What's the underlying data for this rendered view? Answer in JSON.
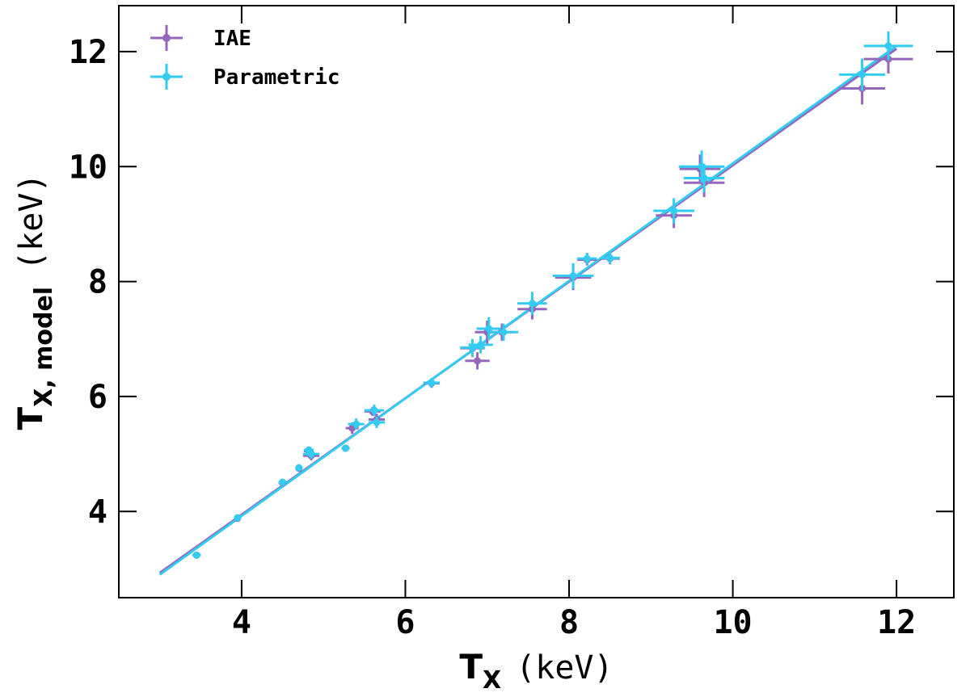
{
  "chart_data": {
    "type": "scatter",
    "title": "",
    "xlabel": {
      "symbol": "T",
      "sub": "X",
      "unit": "(keV)"
    },
    "ylabel": {
      "symbol": "T",
      "sub": "X, model",
      "unit": "(keV)"
    },
    "xlim": [
      2.5,
      12.7
    ],
    "ylim": [
      2.5,
      12.8
    ],
    "xticks": [
      4,
      6,
      8,
      10,
      12
    ],
    "yticks": [
      4,
      6,
      8,
      10,
      12
    ],
    "grid": false,
    "legend_position": "top-left",
    "series": [
      {
        "name": "IAE",
        "color": "#9467bd",
        "fit_line": {
          "x": [
            3.0,
            12.0
          ],
          "y": [
            2.93,
            12.05
          ]
        },
        "points": [
          {
            "x": 3.45,
            "y": 3.24,
            "xerr": 0.05,
            "yerr": 0.03
          },
          {
            "x": 3.95,
            "y": 3.88,
            "xerr": 0.04,
            "yerr": 0.04
          },
          {
            "x": 4.5,
            "y": 4.5,
            "xerr": 0.05,
            "yerr": 0.05
          },
          {
            "x": 4.7,
            "y": 4.75,
            "xerr": 0.04,
            "yerr": 0.05
          },
          {
            "x": 4.82,
            "y": 5.05,
            "xerr": 0.06,
            "yerr": 0.06
          },
          {
            "x": 4.85,
            "y": 4.97,
            "xerr": 0.1,
            "yerr": 0.08
          },
          {
            "x": 5.27,
            "y": 5.1,
            "xerr": 0.05,
            "yerr": 0.04
          },
          {
            "x": 5.35,
            "y": 5.45,
            "xerr": 0.08,
            "yerr": 0.1
          },
          {
            "x": 5.6,
            "y": 5.74,
            "xerr": 0.1,
            "yerr": 0.08
          },
          {
            "x": 5.65,
            "y": 5.6,
            "xerr": 0.1,
            "yerr": 0.1
          },
          {
            "x": 6.32,
            "y": 6.23,
            "xerr": 0.1,
            "yerr": 0.08
          },
          {
            "x": 6.82,
            "y": 6.84,
            "xerr": 0.15,
            "yerr": 0.15
          },
          {
            "x": 6.88,
            "y": 6.62,
            "xerr": 0.15,
            "yerr": 0.15
          },
          {
            "x": 7.0,
            "y": 7.12,
            "xerr": 0.15,
            "yerr": 0.2
          },
          {
            "x": 7.18,
            "y": 7.12,
            "xerr": 0.15,
            "yerr": 0.15
          },
          {
            "x": 7.55,
            "y": 7.52,
            "xerr": 0.18,
            "yerr": 0.18
          },
          {
            "x": 8.05,
            "y": 8.07,
            "xerr": 0.22,
            "yerr": 0.22
          },
          {
            "x": 8.22,
            "y": 8.38,
            "xerr": 0.12,
            "yerr": 0.1
          },
          {
            "x": 8.5,
            "y": 8.4,
            "xerr": 0.12,
            "yerr": 0.1
          },
          {
            "x": 9.28,
            "y": 9.15,
            "xerr": 0.22,
            "yerr": 0.22
          },
          {
            "x": 9.6,
            "y": 9.96,
            "xerr": 0.25,
            "yerr": 0.25
          },
          {
            "x": 9.65,
            "y": 9.72,
            "xerr": 0.25,
            "yerr": 0.25
          },
          {
            "x": 11.58,
            "y": 11.36,
            "xerr": 0.28,
            "yerr": 0.28
          },
          {
            "x": 11.9,
            "y": 11.87,
            "xerr": 0.3,
            "yerr": 0.25
          }
        ]
      },
      {
        "name": "Parametric",
        "color": "#33ccf0",
        "fit_line": {
          "x": [
            3.0,
            12.0
          ],
          "y": [
            2.9,
            12.1
          ]
        },
        "points": [
          {
            "x": 3.45,
            "y": 3.24,
            "xerr": 0.05,
            "yerr": 0.03
          },
          {
            "x": 3.95,
            "y": 3.89,
            "xerr": 0.04,
            "yerr": 0.04
          },
          {
            "x": 4.5,
            "y": 4.51,
            "xerr": 0.05,
            "yerr": 0.05
          },
          {
            "x": 4.7,
            "y": 4.76,
            "xerr": 0.04,
            "yerr": 0.05
          },
          {
            "x": 4.82,
            "y": 5.07,
            "xerr": 0.06,
            "yerr": 0.06
          },
          {
            "x": 4.85,
            "y": 5.0,
            "xerr": 0.1,
            "yerr": 0.08
          },
          {
            "x": 5.27,
            "y": 5.1,
            "xerr": 0.05,
            "yerr": 0.04
          },
          {
            "x": 5.4,
            "y": 5.52,
            "xerr": 0.1,
            "yerr": 0.1
          },
          {
            "x": 5.62,
            "y": 5.76,
            "xerr": 0.12,
            "yerr": 0.1
          },
          {
            "x": 5.65,
            "y": 5.55,
            "xerr": 0.1,
            "yerr": 0.1
          },
          {
            "x": 6.32,
            "y": 6.24,
            "xerr": 0.1,
            "yerr": 0.08
          },
          {
            "x": 6.82,
            "y": 6.85,
            "xerr": 0.15,
            "yerr": 0.15
          },
          {
            "x": 6.92,
            "y": 6.9,
            "xerr": 0.15,
            "yerr": 0.15
          },
          {
            "x": 7.02,
            "y": 7.18,
            "xerr": 0.15,
            "yerr": 0.2
          },
          {
            "x": 7.2,
            "y": 7.12,
            "xerr": 0.18,
            "yerr": 0.15
          },
          {
            "x": 7.55,
            "y": 7.62,
            "xerr": 0.18,
            "yerr": 0.2
          },
          {
            "x": 8.05,
            "y": 8.1,
            "xerr": 0.25,
            "yerr": 0.22
          },
          {
            "x": 8.22,
            "y": 8.4,
            "xerr": 0.12,
            "yerr": 0.1
          },
          {
            "x": 8.5,
            "y": 8.41,
            "xerr": 0.12,
            "yerr": 0.1
          },
          {
            "x": 9.28,
            "y": 9.23,
            "xerr": 0.25,
            "yerr": 0.22
          },
          {
            "x": 9.62,
            "y": 10.0,
            "xerr": 0.28,
            "yerr": 0.28
          },
          {
            "x": 9.65,
            "y": 9.8,
            "xerr": 0.25,
            "yerr": 0.25
          },
          {
            "x": 11.58,
            "y": 11.6,
            "xerr": 0.28,
            "yerr": 0.28
          },
          {
            "x": 11.9,
            "y": 12.1,
            "xerr": 0.3,
            "yerr": 0.25
          }
        ]
      }
    ]
  }
}
